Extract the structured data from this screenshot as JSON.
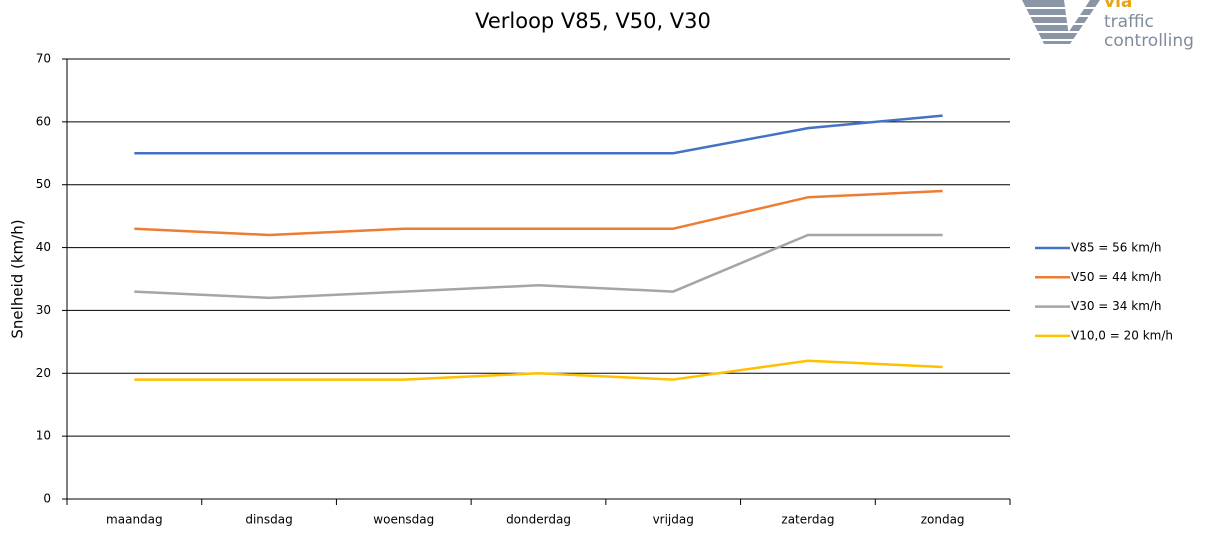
{
  "chart_data": {
    "type": "line",
    "title": "Verloop V85, V50, V30",
    "y_label": "Snelheid (km/h)",
    "categories": [
      "maandag",
      "dinsdag",
      "woensdag",
      "donderdag",
      "vrijdag",
      "zaterdag",
      "zondag"
    ],
    "series": [
      {
        "name": "V85 = 56 km/h",
        "color": "#4472c4",
        "values": [
          55,
          55,
          55,
          55,
          55,
          59,
          61
        ]
      },
      {
        "name": "V50 = 44 km/h",
        "color": "#ed7d31",
        "values": [
          43,
          42,
          43,
          43,
          43,
          48,
          49
        ]
      },
      {
        "name": "V30 = 34 km/h",
        "color": "#a5a5a5",
        "values": [
          33,
          32,
          33,
          34,
          33,
          42,
          42
        ]
      },
      {
        "name": "V10,0 = 20 km/h",
        "color": "#ffc000",
        "values": [
          19,
          19,
          19,
          20,
          19,
          22,
          21
        ]
      }
    ],
    "ylim": [
      0,
      70
    ],
    "yticks": [
      0,
      10,
      20,
      30,
      40,
      50,
      60,
      70
    ],
    "grid": true,
    "legend": "right"
  },
  "logo": {
    "lines": [
      "via",
      "traffic",
      "controlling"
    ]
  }
}
